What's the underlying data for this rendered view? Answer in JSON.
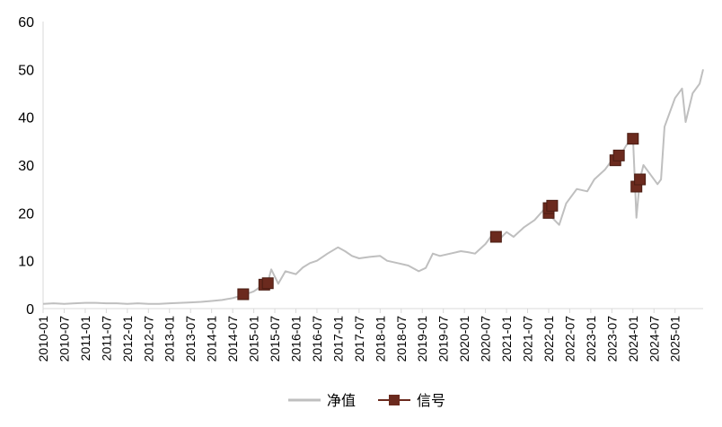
{
  "chart_data": {
    "type": "line",
    "title": "",
    "xlabel": "",
    "ylabel": "",
    "ylim": [
      0,
      60
    ],
    "yticks": [
      "0",
      "10",
      "20",
      "30",
      "40",
      "50",
      "60"
    ],
    "xlim": [
      "2010-01",
      "2025-09"
    ],
    "xticks": [
      "2010-01",
      "2010-07",
      "2011-01",
      "2011-07",
      "2012-01",
      "2012-07",
      "2013-01",
      "2013-07",
      "2014-01",
      "2014-07",
      "2015-01",
      "2015-07",
      "2016-01",
      "2016-07",
      "2017-01",
      "2017-07",
      "2018-01",
      "2018-07",
      "2019-01",
      "2019-07",
      "2020-01",
      "2020-07",
      "2021-01",
      "2021-07",
      "2022-01",
      "2022-07",
      "2023-01",
      "2023-07",
      "2024-01",
      "2024-07",
      "2025-01"
    ],
    "grid": false,
    "legend_position": "bottom",
    "series": [
      {
        "name": "净值",
        "kind": "line",
        "color": "#bfbfbf",
        "x": [
          "2010-01",
          "2010-04",
          "2010-07",
          "2010-10",
          "2011-01",
          "2011-04",
          "2011-07",
          "2011-10",
          "2012-01",
          "2012-04",
          "2012-07",
          "2012-10",
          "2013-01",
          "2013-04",
          "2013-07",
          "2013-10",
          "2014-01",
          "2014-04",
          "2014-07",
          "2014-10",
          "2015-01",
          "2015-03",
          "2015-05",
          "2015-06",
          "2015-08",
          "2015-10",
          "2016-01",
          "2016-03",
          "2016-05",
          "2016-07",
          "2016-10",
          "2017-01",
          "2017-03",
          "2017-05",
          "2017-07",
          "2017-10",
          "2018-01",
          "2018-03",
          "2018-06",
          "2018-09",
          "2018-12",
          "2019-02",
          "2019-04",
          "2019-06",
          "2019-09",
          "2019-12",
          "2020-02",
          "2020-04",
          "2020-07",
          "2020-09",
          "2020-11",
          "2021-01",
          "2021-03",
          "2021-06",
          "2021-09",
          "2021-12",
          "2022-02",
          "2022-04",
          "2022-06",
          "2022-09",
          "2022-12",
          "2023-02",
          "2023-05",
          "2023-07",
          "2023-09",
          "2023-11",
          "2024-01",
          "2024-02",
          "2024-03",
          "2024-04",
          "2024-06",
          "2024-08",
          "2024-09",
          "2024-10",
          "2025-01",
          "2025-03",
          "2025-04",
          "2025-06",
          "2025-08",
          "2025-09"
        ],
        "values": [
          1.0,
          1.1,
          1.0,
          1.1,
          1.2,
          1.2,
          1.1,
          1.1,
          1.0,
          1.1,
          1.0,
          1.0,
          1.1,
          1.2,
          1.3,
          1.4,
          1.6,
          1.8,
          2.2,
          2.8,
          3.6,
          4.6,
          5.5,
          8.2,
          5.2,
          7.8,
          7.2,
          8.6,
          9.5,
          10.0,
          11.5,
          12.8,
          12.0,
          11.0,
          10.5,
          10.8,
          11.0,
          10.0,
          9.5,
          9.0,
          7.8,
          8.5,
          11.5,
          11.0,
          11.5,
          12.0,
          11.8,
          11.5,
          13.5,
          15.5,
          14.5,
          16.0,
          15.0,
          17.0,
          18.5,
          21.0,
          19.0,
          17.5,
          22.0,
          25.0,
          24.5,
          27.0,
          29.0,
          31.0,
          31.5,
          34.0,
          36.0,
          19.0,
          27.0,
          30.0,
          28.0,
          26.0,
          27.0,
          38.0,
          44.0,
          46.0,
          39.0,
          45.0,
          47.0,
          50.0
        ]
      },
      {
        "name": "信号",
        "kind": "marker",
        "color": "#6b2a1e",
        "points": [
          {
            "x": "2014-10",
            "y": 3.0
          },
          {
            "x": "2015-04",
            "y": 5.0
          },
          {
            "x": "2015-05",
            "y": 5.3
          },
          {
            "x": "2020-10",
            "y": 15.0
          },
          {
            "x": "2022-01",
            "y": 20.0
          },
          {
            "x": "2022-01",
            "y": 21.0
          },
          {
            "x": "2022-02",
            "y": 21.5
          },
          {
            "x": "2023-08",
            "y": 31.0
          },
          {
            "x": "2023-09",
            "y": 32.0
          },
          {
            "x": "2024-01",
            "y": 35.5
          },
          {
            "x": "2024-02",
            "y": 25.5
          },
          {
            "x": "2024-03",
            "y": 27.0
          }
        ]
      }
    ]
  }
}
